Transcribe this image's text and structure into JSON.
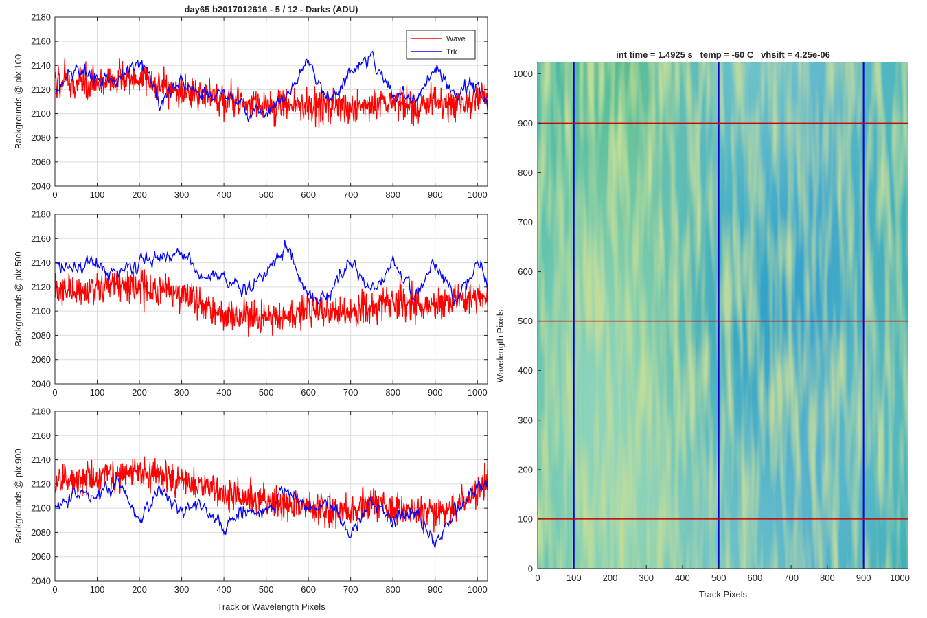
{
  "title": "day65 b2017012616 - 5 / 12 - Darks (ADU)",
  "colors": {
    "wave": "#ff0000",
    "trk": "#0000ff",
    "grid": "#dcdcdc",
    "axis": "#262626"
  },
  "chart_data": [
    {
      "type": "line",
      "title": "day65 b2017012616 - 5 / 12 - Darks (ADU)",
      "xlabel": "",
      "ylabel": "Backgrounds @ pix 100",
      "xlim": [
        0,
        1024
      ],
      "ylim": [
        2040,
        2180
      ],
      "xticks": [
        0,
        100,
        200,
        300,
        400,
        500,
        600,
        700,
        800,
        900,
        1000
      ],
      "yticks": [
        2040,
        2060,
        2080,
        2100,
        2120,
        2140,
        2160,
        2180
      ],
      "grid": true,
      "legend": {
        "position": "top-right",
        "entries": [
          "Wave",
          "Trk"
        ]
      },
      "series": [
        {
          "name": "Wave",
          "color": "#ff0000",
          "x": [
            0,
            50,
            100,
            150,
            200,
            250,
            300,
            350,
            400,
            450,
            500,
            550,
            600,
            650,
            700,
            750,
            800,
            850,
            900,
            950,
            1000,
            1024
          ],
          "values": [
            2128,
            2124,
            2125,
            2127,
            2129,
            2123,
            2119,
            2115,
            2112,
            2108,
            2106,
            2105,
            2108,
            2107,
            2104,
            2105,
            2108,
            2106,
            2110,
            2107,
            2112,
            2114
          ]
        },
        {
          "name": "Trk",
          "color": "#0000ff",
          "x": [
            0,
            50,
            100,
            150,
            200,
            250,
            300,
            350,
            400,
            450,
            500,
            550,
            600,
            650,
            700,
            750,
            800,
            850,
            900,
            950,
            1000,
            1024
          ],
          "values": [
            2118,
            2138,
            2128,
            2126,
            2146,
            2108,
            2128,
            2114,
            2120,
            2104,
            2098,
            2116,
            2142,
            2110,
            2135,
            2148,
            2116,
            2110,
            2138,
            2116,
            2124,
            2104
          ]
        }
      ]
    },
    {
      "type": "line",
      "title": "",
      "xlabel": "",
      "ylabel": "Backgrounds @ pix 500",
      "xlim": [
        0,
        1024
      ],
      "ylim": [
        2040,
        2180
      ],
      "xticks": [
        0,
        100,
        200,
        300,
        400,
        500,
        600,
        700,
        800,
        900,
        1000
      ],
      "yticks": [
        2040,
        2060,
        2080,
        2100,
        2120,
        2140,
        2160,
        2180
      ],
      "grid": true,
      "series": [
        {
          "name": "Wave",
          "color": "#ff0000",
          "x": [
            0,
            50,
            100,
            150,
            200,
            250,
            300,
            350,
            400,
            450,
            500,
            550,
            600,
            650,
            700,
            750,
            800,
            850,
            900,
            950,
            1000,
            1024
          ],
          "values": [
            2118,
            2115,
            2120,
            2122,
            2120,
            2117,
            2115,
            2106,
            2100,
            2097,
            2095,
            2095,
            2100,
            2102,
            2098,
            2102,
            2108,
            2105,
            2104,
            2108,
            2112,
            2110
          ]
        },
        {
          "name": "Trk",
          "color": "#0000ff",
          "x": [
            0,
            50,
            100,
            150,
            200,
            250,
            300,
            350,
            400,
            450,
            500,
            550,
            600,
            650,
            700,
            750,
            800,
            850,
            900,
            950,
            1000,
            1024
          ],
          "values": [
            2140,
            2136,
            2138,
            2132,
            2140,
            2146,
            2150,
            2126,
            2128,
            2118,
            2132,
            2155,
            2110,
            2115,
            2140,
            2115,
            2140,
            2112,
            2138,
            2110,
            2138,
            2120
          ]
        }
      ]
    },
    {
      "type": "line",
      "title": "",
      "xlabel": "Track or Wavelength Pixels",
      "ylabel": "Backgrounds @ pix 900",
      "xlim": [
        0,
        1024
      ],
      "ylim": [
        2040,
        2180
      ],
      "xticks": [
        0,
        100,
        200,
        300,
        400,
        500,
        600,
        700,
        800,
        900,
        1000
      ],
      "yticks": [
        2040,
        2060,
        2080,
        2100,
        2120,
        2140,
        2160,
        2180
      ],
      "grid": true,
      "series": [
        {
          "name": "Wave",
          "color": "#ff0000",
          "x": [
            0,
            50,
            100,
            150,
            200,
            250,
            300,
            350,
            400,
            450,
            500,
            550,
            600,
            650,
            700,
            750,
            800,
            850,
            900,
            950,
            1000,
            1024
          ],
          "values": [
            2122,
            2125,
            2126,
            2128,
            2130,
            2128,
            2125,
            2120,
            2112,
            2110,
            2105,
            2103,
            2100,
            2097,
            2097,
            2105,
            2100,
            2098,
            2097,
            2100,
            2116,
            2120
          ]
        },
        {
          "name": "Trk",
          "color": "#0000ff",
          "x": [
            0,
            50,
            100,
            150,
            200,
            250,
            300,
            350,
            400,
            450,
            500,
            550,
            600,
            650,
            700,
            750,
            800,
            850,
            900,
            950,
            1000,
            1024
          ],
          "values": [
            2098,
            2112,
            2108,
            2122,
            2090,
            2115,
            2100,
            2100,
            2084,
            2098,
            2098,
            2115,
            2100,
            2105,
            2078,
            2108,
            2090,
            2100,
            2070,
            2100,
            2120,
            2116
          ]
        }
      ]
    },
    {
      "type": "heatmap",
      "title": "int time = 1.4925 s   temp = -60 C   vhsift = 4.25e-06",
      "xlabel": "Track Pixels",
      "ylabel": "Wavelength Pixels",
      "xlim": [
        0,
        1024
      ],
      "ylim": [
        0,
        1024
      ],
      "xticks": [
        0,
        100,
        200,
        300,
        400,
        500,
        600,
        700,
        800,
        900,
        1000
      ],
      "yticks": [
        0,
        100,
        200,
        300,
        400,
        500,
        600,
        700,
        800,
        900,
        1000
      ],
      "colormap": [
        "#1f8fd8",
        "#27a0c8",
        "#3cb4a6",
        "#6cc08a",
        "#a6c45e"
      ],
      "vertical_markers": {
        "color": "#0000cc",
        "x": [
          100,
          500,
          900
        ]
      },
      "horizontal_markers": {
        "color": "#cc0000",
        "y": [
          100,
          500,
          900
        ]
      }
    }
  ]
}
